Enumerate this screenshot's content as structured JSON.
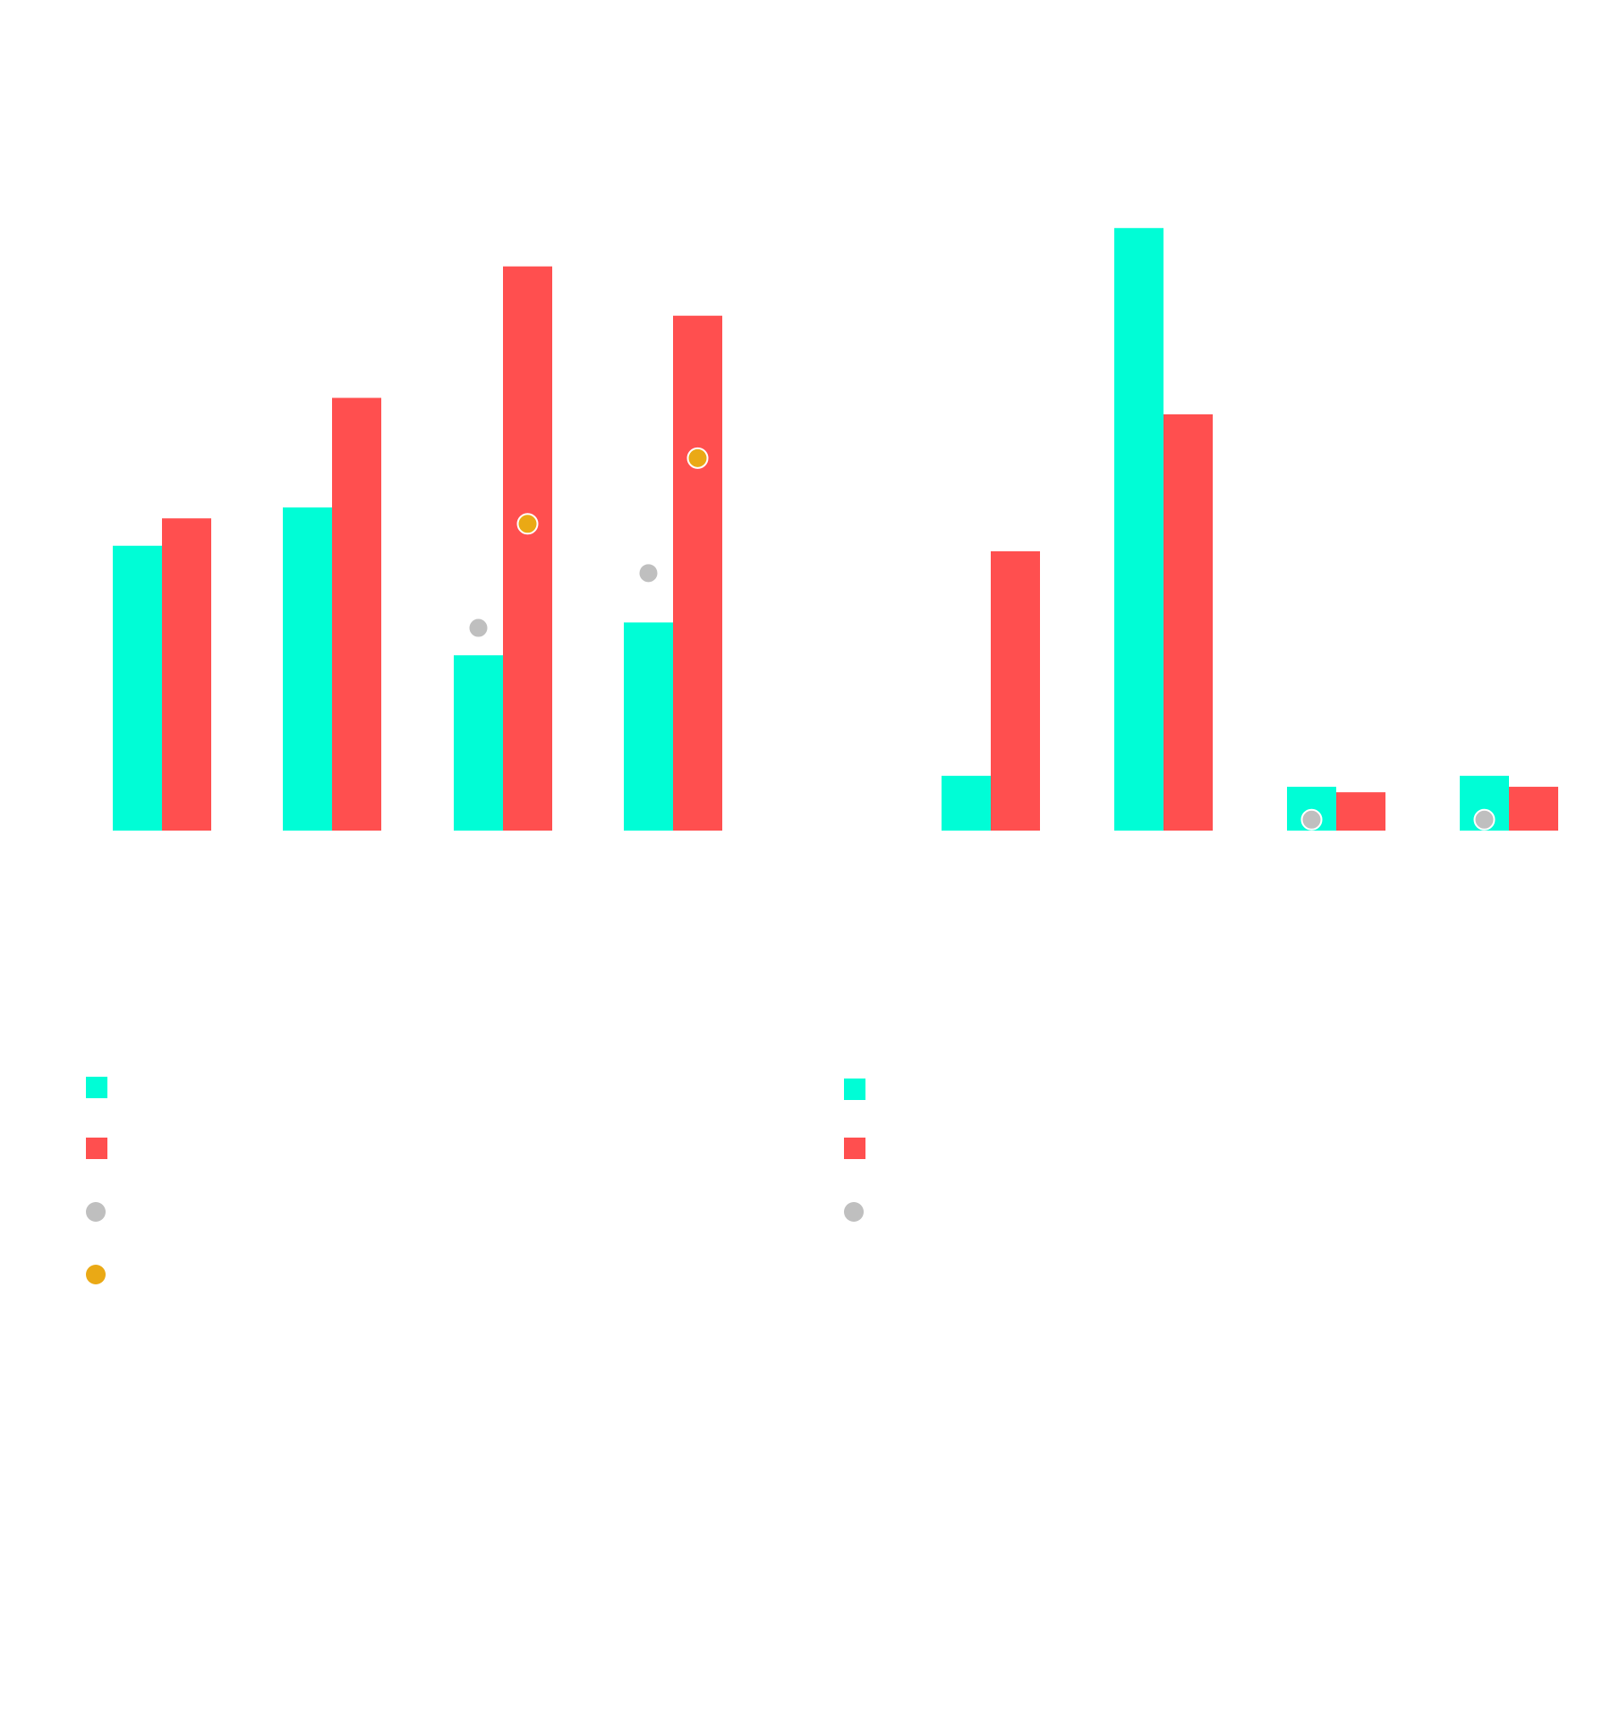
{
  "chart_data": [
    {
      "type": "bar",
      "panel": "left",
      "categories": [
        "",
        "",
        "",
        ""
      ],
      "series": [
        {
          "name": "",
          "kind": "bar",
          "color": "#00FDD6",
          "values": [
            52,
            59,
            32,
            38
          ]
        },
        {
          "name": "",
          "kind": "bar",
          "color": "#FF4F4F",
          "values": [
            57,
            79,
            103,
            94
          ]
        },
        {
          "name": "",
          "kind": "point",
          "color": "#BFBFBF",
          "values": [
            null,
            null,
            37,
            47
          ]
        },
        {
          "name": "",
          "kind": "point",
          "color": "#EAA915",
          "values": [
            null,
            null,
            56,
            68
          ]
        }
      ],
      "ylim": [
        0,
        120
      ],
      "grid": false,
      "legend": "bottom-left"
    },
    {
      "type": "bar",
      "panel": "right",
      "categories": [
        "",
        "",
        "",
        ""
      ],
      "series": [
        {
          "name": "",
          "kind": "bar",
          "color": "#00FDD6",
          "values": [
            10,
            110,
            8,
            10
          ]
        },
        {
          "name": "",
          "kind": "bar",
          "color": "#FF4F4F",
          "values": [
            51,
            76,
            7,
            8
          ]
        },
        {
          "name": "",
          "kind": "point",
          "color": "#BFBFBF",
          "values": [
            null,
            null,
            2,
            2
          ]
        }
      ],
      "ylim": [
        0,
        120
      ],
      "grid": false,
      "legend": "bottom-center"
    }
  ]
}
